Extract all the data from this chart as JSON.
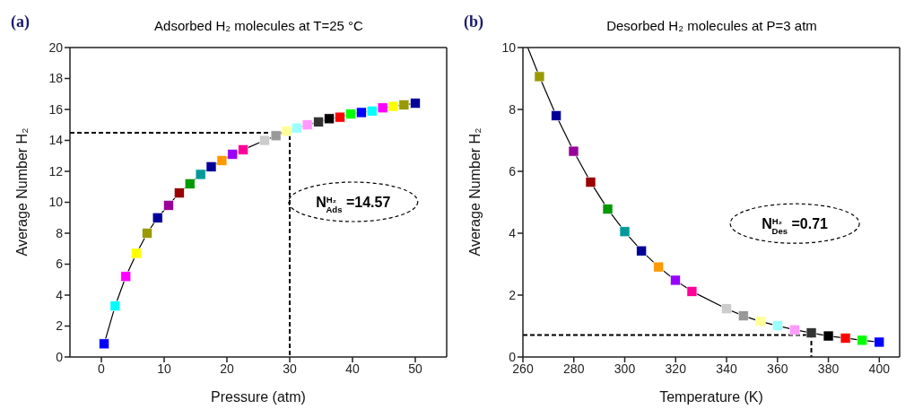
{
  "chart_data": [
    {
      "type": "line",
      "title": "Adsorbed H₂ molecules at T=25 °C",
      "xlabel": "Pressure (atm)",
      "ylabel": "Average Number H₂",
      "annotations": [
        "(a)",
        "N$^{H₂}$$_{Ads}$ =14.57"
      ],
      "xlim": [
        -5,
        55
      ],
      "xticks": [
        0,
        10,
        20,
        30,
        40,
        50
      ],
      "ylim": [
        0,
        20
      ],
      "yticks": [
        0,
        2,
        4,
        6,
        8,
        10,
        12,
        14,
        16,
        18,
        20
      ],
      "grid": false,
      "legend": false,
      "marker": "square",
      "line_style": "solid",
      "series": [
        {
          "color": "#000000",
          "x": [
            0.44,
            2.2,
            3.9,
            5.6,
            7.3,
            8.95,
            10.7,
            12.4,
            14.1,
            15.8,
            17.5,
            19.2,
            20.9,
            22.6,
            26.0,
            27.8,
            29.5,
            31.1,
            32.8,
            34.6,
            36.3,
            38.0,
            39.7,
            41.4,
            43.1,
            44.8,
            46.5,
            48.2,
            50.0
          ],
          "values": [
            0.85,
            3.3,
            5.2,
            6.7,
            8.0,
            9.0,
            9.8,
            10.6,
            11.2,
            11.8,
            12.3,
            12.7,
            13.1,
            13.4,
            14.0,
            14.3,
            14.6,
            14.8,
            15.0,
            15.2,
            15.4,
            15.5,
            15.7,
            15.8,
            15.9,
            16.1,
            16.2,
            16.3,
            16.4
          ],
          "colors": [
            "#0000ff",
            "#00ffff",
            "#ff00ff",
            "#ffff00",
            "#999900",
            "#000099",
            "#990099",
            "#990000",
            "#009900",
            "#009999",
            "#000099",
            "#ff9900",
            "#9900ff",
            "#ff0099",
            "#cccccc",
            "#999999",
            "#ffff99",
            "#99ffff",
            "#ff99ff",
            "#333333",
            "#000000",
            "#ff0000",
            "#00ff00",
            "#0000ff",
            "#00ffff",
            "#ff00ff",
            "#ffff00",
            "#999900",
            "#000099"
          ]
        },
        {
          "type": "line",
          "color": "#000000",
          "marker": "none",
          "line_style": "dashed",
          "x": [
            -5,
            30,
            30
          ],
          "values": [
            14.5,
            14.5,
            0
          ]
        }
      ]
    },
    {
      "type": "line",
      "title": "Desorbed H₂ molecules at P=3 atm",
      "xlabel": "Temperature (K)",
      "ylabel": "Average Number H₂",
      "annotations": [
        "(b)",
        "N$^{H₂}$$_{Des}$ =0.71"
      ],
      "xlim": [
        260,
        408
      ],
      "xticks": [
        260,
        280,
        300,
        320,
        340,
        360,
        380,
        400
      ],
      "ylim": [
        0,
        10
      ],
      "yticks": [
        0,
        2,
        4,
        6,
        8,
        10
      ],
      "grid": false,
      "legend": false,
      "marker": "square",
      "line_style": "solid",
      "series": [
        {
          "color": "#000000",
          "x": [
            261.9,
            266.5,
            273.1,
            279.9,
            286.6,
            293.3,
            300.0,
            306.6,
            313.3,
            319.9,
            326.4,
            340.0,
            346.6,
            353.3,
            360.0,
            366.7,
            373.3,
            380.0,
            386.7,
            393.3,
            400.0
          ],
          "values": [
            10,
            9.06,
            7.8,
            6.65,
            5.65,
            4.78,
            4.05,
            3.43,
            2.91,
            2.48,
            2.12,
            1.56,
            1.33,
            1.15,
            1.01,
            0.88,
            0.78,
            0.68,
            0.61,
            0.54,
            0.48
          ],
          "colors": [
            null,
            "#999900",
            "#000099",
            "#990099",
            "#990000",
            "#009900",
            "#009999",
            "#000099",
            "#ff9900",
            "#9900ff",
            "#ff0099",
            "#cccccc",
            "#999999",
            "#ffff99",
            "#99ffff",
            "#ff99ff",
            "#333333",
            "#000000",
            "#ff0000",
            "#00ff00",
            "#0000ff"
          ]
        },
        {
          "type": "line",
          "color": "#000000",
          "marker": "none",
          "line_style": "dashed",
          "x": [
            260,
            373.3,
            373.3
          ],
          "values": [
            0.71,
            0.71,
            0
          ]
        }
      ]
    }
  ]
}
